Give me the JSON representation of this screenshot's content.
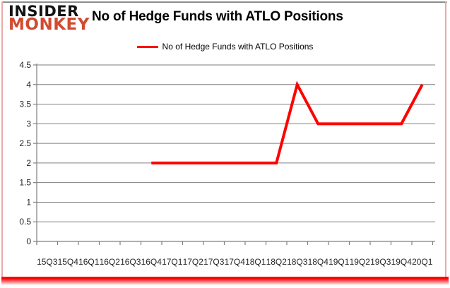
{
  "logo": {
    "line1": "INSIDER",
    "line2": "MONKEY"
  },
  "title": "No of Hedge Funds with ATLO Positions",
  "legend": {
    "label": "No of Hedge Funds with ATLO Positions",
    "color": "#ff0000"
  },
  "colors": {
    "line": "#ff0000",
    "grid": "#7f7f7f",
    "tick_text": "#262626",
    "logo_red": "#d14b30",
    "frame_pink": "#eba9a7",
    "frame_top_gray": "#8c8c8c"
  },
  "chart_data": {
    "type": "line",
    "title": "No of Hedge Funds with ATLO Positions",
    "categories": [
      "15Q3",
      "15Q4",
      "16Q1",
      "16Q2",
      "16Q3",
      "16Q4",
      "17Q1",
      "17Q2",
      "17Q3",
      "17Q4",
      "18Q1",
      "18Q2",
      "18Q3",
      "18Q4",
      "19Q1",
      "19Q2",
      "19Q3",
      "19Q4",
      "20Q1"
    ],
    "series": [
      {
        "name": "No of Hedge Funds with ATLO Positions",
        "color": "#ff0000",
        "values": [
          null,
          null,
          null,
          null,
          null,
          2,
          2,
          2,
          2,
          2,
          2,
          2,
          4,
          3,
          3,
          3,
          3,
          3,
          4
        ]
      }
    ],
    "xlabel": "",
    "ylabel": "",
    "ylim": [
      0,
      4.5
    ],
    "ytick_step": 0.5,
    "ytick_labels": [
      "0",
      "0.5",
      "1",
      "1.5",
      "2",
      "2.5",
      "3",
      "3.5",
      "4",
      "4.5"
    ],
    "grid": true,
    "legend_position": "top"
  }
}
